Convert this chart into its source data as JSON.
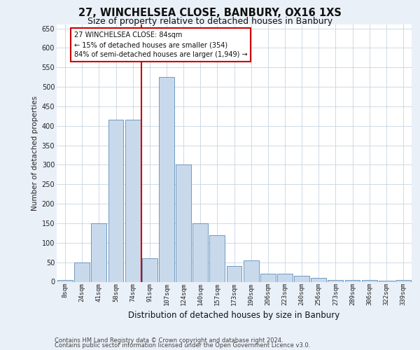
{
  "title_line1": "27, WINCHELSEA CLOSE, BANBURY, OX16 1XS",
  "title_line2": "Size of property relative to detached houses in Banbury",
  "xlabel": "Distribution of detached houses by size in Banbury",
  "ylabel": "Number of detached properties",
  "footer_line1": "Contains HM Land Registry data © Crown copyright and database right 2024.",
  "footer_line2": "Contains public sector information licensed under the Open Government Licence v3.0.",
  "categories": [
    "8sqm",
    "24sqm",
    "41sqm",
    "58sqm",
    "74sqm",
    "91sqm",
    "107sqm",
    "124sqm",
    "140sqm",
    "157sqm",
    "173sqm",
    "190sqm",
    "206sqm",
    "223sqm",
    "240sqm",
    "256sqm",
    "273sqm",
    "289sqm",
    "306sqm",
    "322sqm",
    "339sqm"
  ],
  "values": [
    5,
    50,
    150,
    415,
    415,
    60,
    525,
    300,
    150,
    120,
    40,
    55,
    20,
    20,
    15,
    10,
    5,
    5,
    5,
    3,
    5
  ],
  "bar_color": "#c9d9ec",
  "bar_edge_color": "#5b8db8",
  "vline_x": 4.5,
  "vline_color": "#cc0000",
  "annotation_text": "27 WINCHELSEA CLOSE: 84sqm\n← 15% of detached houses are smaller (354)\n84% of semi-detached houses are larger (1,949) →",
  "annotation_box_color": "#ffffff",
  "annotation_box_edge_color": "#cc0000",
  "ylim": [
    0,
    660
  ],
  "yticks": [
    0,
    50,
    100,
    150,
    200,
    250,
    300,
    350,
    400,
    450,
    500,
    550,
    600,
    650
  ],
  "bg_color": "#eaf0f8",
  "plot_bg_color": "#ffffff",
  "grid_color": "#c8d4e0",
  "title1_fontsize": 10.5,
  "title2_fontsize": 9,
  "ylabel_fontsize": 7.5,
  "xlabel_fontsize": 8.5,
  "tick_fontsize": 6.5,
  "footer_fontsize": 6,
  "annot_fontsize": 7
}
